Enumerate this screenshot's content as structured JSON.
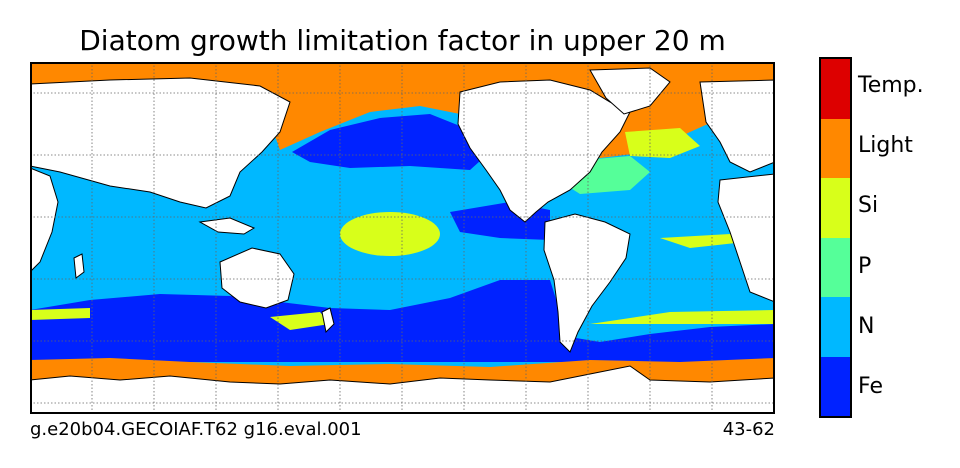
{
  "title": "Diatom growth limitation factor in upper 20 m",
  "footer": {
    "case_name": "g.e20b04.GECOIAF.T62 g16.eval.001",
    "years": "43-62"
  },
  "colors": {
    "Fe": "#0022ff",
    "N": "#00b8ff",
    "P": "#55ff99",
    "Si": "#d8ff1a",
    "Light": "#ff8800",
    "Temp": "#dd0000",
    "land": "#ffffff",
    "coast": "#000000",
    "grid": "#666666"
  },
  "colorbar": {
    "categories": [
      "Temp.",
      "Light",
      "Si",
      "P",
      "N",
      "Fe"
    ],
    "color_keys": [
      "Temp",
      "Light",
      "Si",
      "P",
      "N",
      "Fe"
    ]
  },
  "map": {
    "projection": "equirectangular",
    "lon_range": [
      20,
      380
    ],
    "lat_range": [
      -80,
      90
    ],
    "gridlines": "dotted",
    "gridline_lon_step": 30,
    "gridline_lat_step": 30
  }
}
